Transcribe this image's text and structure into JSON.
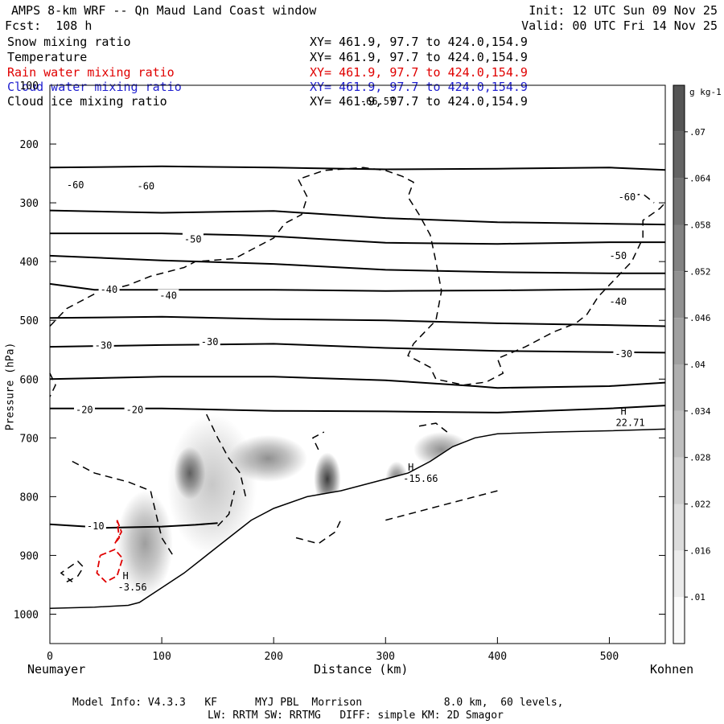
{
  "header": {
    "title": "AMPS 8-km WRF -- Qn Maud Land Coast window",
    "init": "Init: 12 UTC Sun 09 Nov 25",
    "forecast": "Fcst:  108 h",
    "valid": "Valid: 00 UTC Fri 14 Nov 25"
  },
  "legend": [
    {
      "name": "Snow mixing ratio",
      "xy": "XY= 461.9, 97.7 to 424.0,154.9",
      "color": "#000000"
    },
    {
      "name": "Temperature",
      "xy": "XY= 461.9, 97.7 to 424.0,154.9",
      "color": "#000000"
    },
    {
      "name": "Rain water mixing ratio",
      "xy": "XY= 461.9, 97.7 to 424.0,154.9",
      "color": "#e00000"
    },
    {
      "name": "Cloud water mixing ratio",
      "xy": "XY= 461.9, 97.7 to 424.0,154.9",
      "color": "#2020d0"
    },
    {
      "name": "Cloud ice mixing ratio",
      "xy": "XY= 461.9, 97.7 to 424.0,154.9",
      "color": "#000000"
    }
  ],
  "footer": {
    "line1": "Model Info: V4.3.3   KF      MYJ PBL  Morrison             8.0 km,  60 levels,",
    "line2": "LW: RRTM SW: RRTMG   DIFF: simple KM: 2D Smagor"
  },
  "chart_data": {
    "type": "cross-section",
    "xlabel": "Distance (km)",
    "ylabel": "Pressure (hPa)",
    "x_left_label": "Neumayer",
    "x_right_label": "Kohnen",
    "xlim": [
      0,
      550
    ],
    "ylim": [
      1050,
      100
    ],
    "x_ticks": [
      0,
      100,
      200,
      300,
      400,
      500
    ],
    "y_ticks": [
      100,
      200,
      300,
      400,
      500,
      600,
      700,
      800,
      900,
      1000
    ],
    "temperature_isotherms": [
      {
        "label": "-60",
        "points": [
          [
            0,
            240
          ],
          [
            100,
            238
          ],
          [
            200,
            240
          ],
          [
            300,
            243
          ],
          [
            400,
            242
          ],
          [
            500,
            240
          ],
          [
            550,
            244
          ]
        ]
      },
      {
        "label": "-60",
        "points": [
          [
            0,
            313
          ],
          [
            100,
            317
          ],
          [
            200,
            314
          ],
          [
            300,
            326
          ],
          [
            400,
            333
          ],
          [
            550,
            337
          ]
        ]
      },
      {
        "label": "-50",
        "points": [
          [
            0,
            352
          ],
          [
            100,
            352
          ],
          [
            170,
            355
          ],
          [
            200,
            357
          ],
          [
            300,
            368
          ],
          [
            400,
            370
          ],
          [
            500,
            367
          ],
          [
            550,
            367
          ]
        ]
      },
      {
        "label": "-50",
        "points": [
          [
            0,
            390
          ],
          [
            100,
            398
          ],
          [
            200,
            404
          ],
          [
            300,
            414
          ],
          [
            400,
            418
          ],
          [
            500,
            420
          ],
          [
            550,
            420
          ]
        ]
      },
      {
        "label": "-40",
        "points": [
          [
            0,
            438
          ],
          [
            40,
            448
          ],
          [
            100,
            448
          ],
          [
            200,
            448
          ],
          [
            300,
            450
          ],
          [
            400,
            449
          ],
          [
            500,
            447
          ],
          [
            550,
            447
          ]
        ]
      },
      {
        "label": "-40",
        "points": [
          [
            0,
            496
          ],
          [
            100,
            494
          ],
          [
            200,
            498
          ],
          [
            300,
            500
          ],
          [
            400,
            505
          ],
          [
            500,
            508
          ],
          [
            550,
            510
          ]
        ]
      },
      {
        "label": "-30",
        "points": [
          [
            0,
            545
          ],
          [
            100,
            542
          ],
          [
            200,
            540
          ],
          [
            300,
            547
          ],
          [
            400,
            552
          ],
          [
            500,
            554
          ],
          [
            550,
            555
          ]
        ]
      },
      {
        "label": "-20",
        "points": [
          [
            0,
            600
          ],
          [
            100,
            596
          ],
          [
            200,
            596
          ],
          [
            300,
            602
          ],
          [
            380,
            612
          ],
          [
            400,
            615
          ],
          [
            500,
            612
          ],
          [
            550,
            606
          ]
        ]
      },
      {
        "label": "-20",
        "points": [
          [
            0,
            650
          ],
          [
            100,
            650
          ],
          [
            200,
            654
          ],
          [
            300,
            655
          ],
          [
            400,
            657
          ],
          [
            500,
            650
          ],
          [
            550,
            645
          ]
        ]
      },
      {
        "label": "-10",
        "points": [
          [
            0,
            847
          ],
          [
            50,
            853
          ],
          [
            100,
            851
          ],
          [
            130,
            848
          ],
          [
            150,
            845
          ]
        ]
      }
    ],
    "temperature_labels": [
      {
        "text": "-60",
        "x": 15,
        "p": 270
      },
      {
        "text": "-60",
        "x": 78,
        "p": 272
      },
      {
        "text": "-60",
        "x": 508,
        "p": 290
      },
      {
        "text": "-50",
        "x": 120,
        "p": 362
      },
      {
        "text": "-50",
        "x": 500,
        "p": 390
      },
      {
        "text": "-40",
        "x": 45,
        "p": 448
      },
      {
        "text": "-40",
        "x": 98,
        "p": 458
      },
      {
        "text": "-40",
        "x": 500,
        "p": 468
      },
      {
        "text": "-30",
        "x": 40,
        "p": 543
      },
      {
        "text": "-30",
        "x": 135,
        "p": 537
      },
      {
        "text": "-30",
        "x": 505,
        "p": 557
      },
      {
        "text": "-20",
        "x": 23,
        "p": 652
      },
      {
        "text": "-20",
        "x": 68,
        "p": 652
      },
      {
        "text": "-10",
        "x": 33,
        "p": 850
      }
    ],
    "terrain": [
      [
        0,
        990
      ],
      [
        40,
        988
      ],
      [
        70,
        985
      ],
      [
        80,
        980
      ],
      [
        100,
        955
      ],
      [
        120,
        930
      ],
      [
        140,
        900
      ],
      [
        160,
        870
      ],
      [
        180,
        840
      ],
      [
        200,
        820
      ],
      [
        230,
        800
      ],
      [
        260,
        790
      ],
      [
        300,
        770
      ],
      [
        320,
        760
      ],
      [
        340,
        740
      ],
      [
        360,
        715
      ],
      [
        380,
        700
      ],
      [
        400,
        693
      ],
      [
        450,
        690
      ],
      [
        500,
        688
      ],
      [
        550,
        685
      ]
    ],
    "snow_blobs": [
      {
        "x": 125,
        "p": 760,
        "rx": 14,
        "rp": 45,
        "v": 0.055
      },
      {
        "x": 248,
        "p": 770,
        "rx": 12,
        "rp": 45,
        "v": 0.07
      },
      {
        "x": 195,
        "p": 735,
        "rx": 35,
        "rp": 40,
        "v": 0.04
      },
      {
        "x": 310,
        "p": 770,
        "rx": 10,
        "rp": 30,
        "v": 0.05
      },
      {
        "x": 350,
        "p": 720,
        "rx": 25,
        "rp": 30,
        "v": 0.04
      },
      {
        "x": 85,
        "p": 880,
        "rx": 25,
        "rp": 90,
        "v": 0.035
      },
      {
        "x": 145,
        "p": 780,
        "rx": 40,
        "rp": 120,
        "v": 0.02
      }
    ],
    "highs": [
      {
        "x": 55,
        "p": 965,
        "value": "-3.56"
      },
      {
        "x": 310,
        "p": 780,
        "value": "-15.66"
      },
      {
        "x": 500,
        "p": 685,
        "value": "22.71"
      }
    ],
    "top_note": {
      "text": "-66.57",
      "x": 240,
      "p": 130
    },
    "colorbar": {
      "units": "g kg-1",
      "ticks": [
        ".01",
        ".016",
        ".022",
        ".028",
        ".034",
        ".04",
        ".046",
        ".052",
        ".058",
        ".064",
        ".07"
      ]
    }
  }
}
